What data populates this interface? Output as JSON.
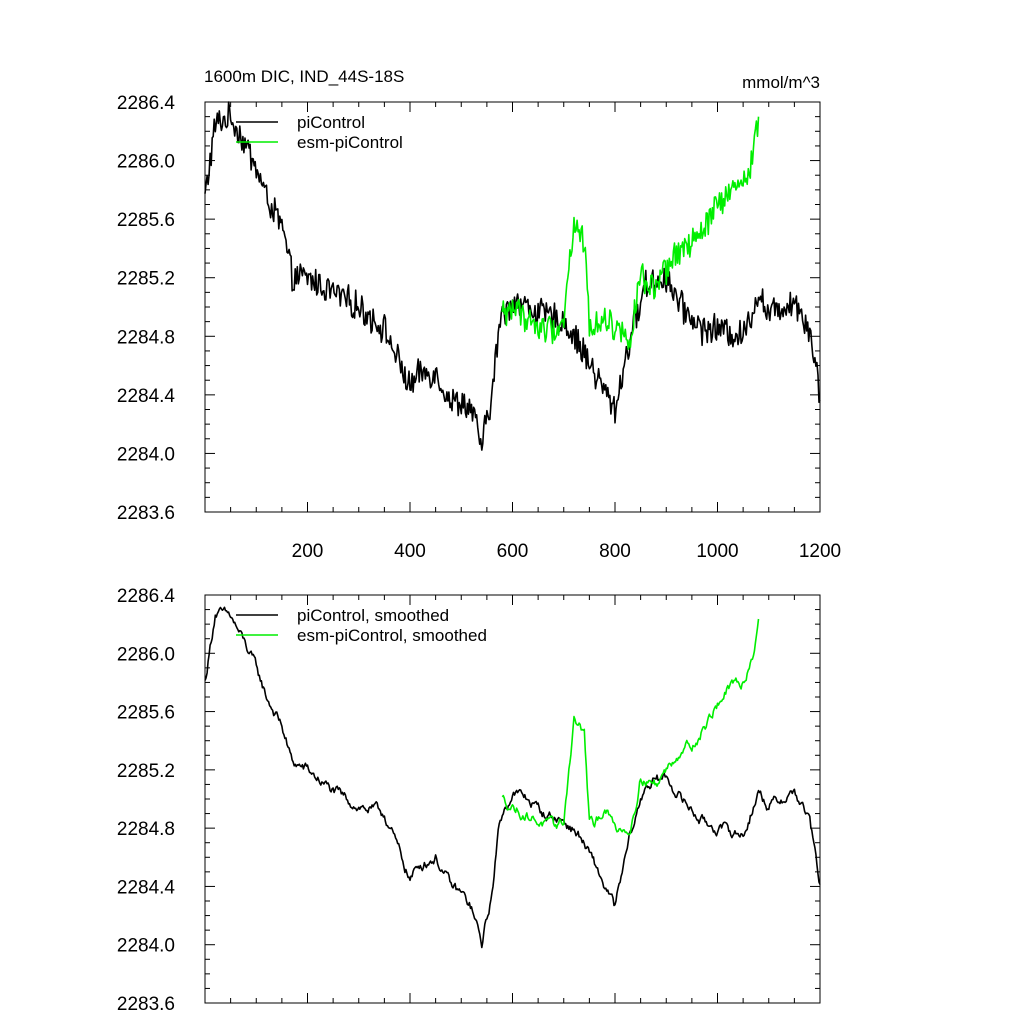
{
  "chart_data": [
    {
      "type": "line",
      "title": "1600m DIC, IND_44S-18S",
      "units": "mmol/m^3",
      "xlim": [
        0,
        1200
      ],
      "ylim": [
        2283.6,
        2286.4
      ],
      "x_tick_labels": [
        "200",
        "400",
        "600",
        "800",
        "1000",
        "1200"
      ],
      "y_tick_labels": [
        "2286.4",
        "2286.0",
        "2285.6",
        "2285.2",
        "2284.8",
        "2284.4",
        "2284.0",
        "2283.6"
      ],
      "legend_position": "top-left",
      "series": [
        {
          "name": "piControl",
          "color": "#000000",
          "x": [
            0,
            20,
            50,
            80,
            100,
            120,
            150,
            170,
            200,
            250,
            300,
            350,
            400,
            420,
            450,
            480,
            500,
            520,
            540,
            560,
            575,
            600,
            630,
            660,
            700,
            730,
            760,
            800,
            830,
            860,
            900,
            930,
            970,
            1000,
            1050,
            1080,
            1100,
            1150,
            1180,
            1200
          ],
          "values": [
            2285.75,
            2286.25,
            2286.3,
            2286.1,
            2285.95,
            2285.75,
            2285.55,
            2285.2,
            2285.2,
            2285.1,
            2285.0,
            2284.85,
            2284.45,
            2284.55,
            2284.55,
            2284.35,
            2284.35,
            2284.3,
            2284.05,
            2284.4,
            2284.9,
            2285.05,
            2285.0,
            2284.95,
            2284.9,
            2284.75,
            2284.55,
            2284.3,
            2284.8,
            2285.15,
            2285.2,
            2285.0,
            2284.85,
            2284.85,
            2284.8,
            2285.1,
            2284.95,
            2285.05,
            2284.85,
            2284.4
          ]
        },
        {
          "name": "esm-piControl",
          "color": "#00ee00",
          "x": [
            580,
            600,
            620,
            650,
            680,
            700,
            710,
            720,
            740,
            750,
            760,
            780,
            800,
            830,
            850,
            880,
            900,
            930,
            960,
            1000,
            1020,
            1050,
            1070,
            1080
          ],
          "values": [
            2284.95,
            2285.0,
            2284.95,
            2284.85,
            2284.85,
            2284.9,
            2285.3,
            2285.55,
            2285.45,
            2284.9,
            2284.85,
            2284.95,
            2284.85,
            2284.8,
            2285.2,
            2285.1,
            2285.25,
            2285.4,
            2285.45,
            2285.7,
            2285.75,
            2285.85,
            2286.05,
            2286.3
          ]
        }
      ]
    },
    {
      "type": "line",
      "title": "",
      "xlim": [
        0,
        1200
      ],
      "ylim": [
        2283.6,
        2286.4
      ],
      "y_tick_labels": [
        "2286.4",
        "2286.0",
        "2285.6",
        "2285.2",
        "2284.8",
        "2284.4",
        "2284.0",
        "2283.6"
      ],
      "legend_position": "top-left",
      "series": [
        {
          "name": "piControl, smoothed",
          "color": "#000000",
          "x": [
            0,
            20,
            50,
            80,
            100,
            120,
            150,
            170,
            200,
            250,
            300,
            350,
            400,
            420,
            450,
            480,
            500,
            520,
            540,
            560,
            575,
            600,
            630,
            660,
            700,
            730,
            760,
            800,
            830,
            860,
            900,
            930,
            970,
            1000,
            1050,
            1080,
            1100,
            1150,
            1180,
            1200
          ],
          "values": [
            2285.8,
            2286.28,
            2286.25,
            2286.05,
            2285.9,
            2285.7,
            2285.5,
            2285.25,
            2285.2,
            2285.05,
            2284.95,
            2284.9,
            2284.45,
            2284.55,
            2284.6,
            2284.4,
            2284.35,
            2284.25,
            2284.0,
            2284.35,
            2284.85,
            2285.05,
            2285.0,
            2284.9,
            2284.85,
            2284.75,
            2284.55,
            2284.25,
            2284.75,
            2285.1,
            2285.15,
            2285.0,
            2284.85,
            2284.8,
            2284.75,
            2285.05,
            2284.95,
            2285.05,
            2284.85,
            2284.4
          ]
        },
        {
          "name": "esm-piControl, smoothed",
          "color": "#00ee00",
          "x": [
            580,
            600,
            620,
            650,
            680,
            700,
            710,
            720,
            740,
            750,
            760,
            780,
            800,
            830,
            850,
            880,
            900,
            930,
            960,
            1000,
            1020,
            1050,
            1070,
            1080
          ],
          "values": [
            2285.0,
            2284.95,
            2284.9,
            2284.85,
            2284.8,
            2284.85,
            2285.2,
            2285.55,
            2285.45,
            2284.85,
            2284.8,
            2284.95,
            2284.8,
            2284.8,
            2285.15,
            2285.1,
            2285.2,
            2285.35,
            2285.4,
            2285.65,
            2285.75,
            2285.8,
            2286.0,
            2286.25
          ]
        }
      ]
    }
  ]
}
